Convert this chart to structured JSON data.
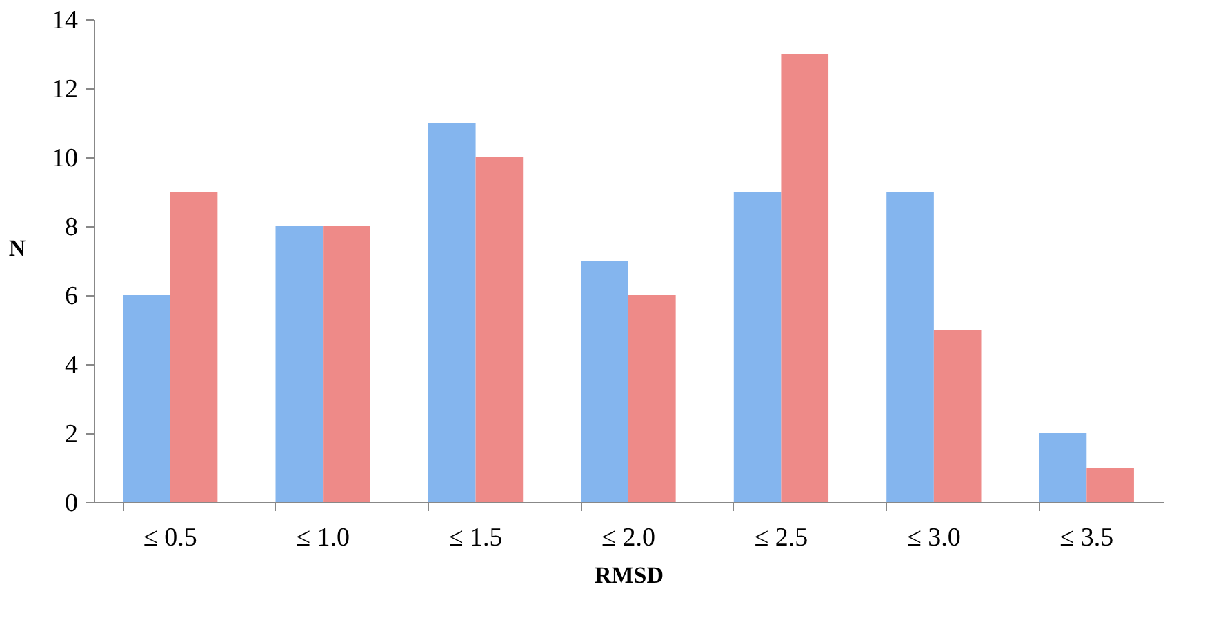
{
  "chart_data": {
    "type": "bar",
    "xlabel": "RMSD",
    "ylabel": "N",
    "categories": [
      "≤ 0.5",
      "≤ 1.0",
      "≤ 1.5",
      "≤ 2.0",
      "≤ 2.5",
      "≤ 3.0",
      "≤ 3.5"
    ],
    "series": [
      {
        "color": "#84b5ee",
        "values": [
          6,
          8,
          11,
          7,
          9,
          9,
          2
        ]
      },
      {
        "color": "#ee8a88",
        "values": [
          9,
          8,
          10,
          6,
          13,
          5,
          1
        ]
      }
    ],
    "ylim": [
      0,
      14
    ],
    "yticks": [
      0,
      2,
      4,
      6,
      8,
      10,
      12,
      14
    ],
    "grid": false,
    "legend": false
  }
}
